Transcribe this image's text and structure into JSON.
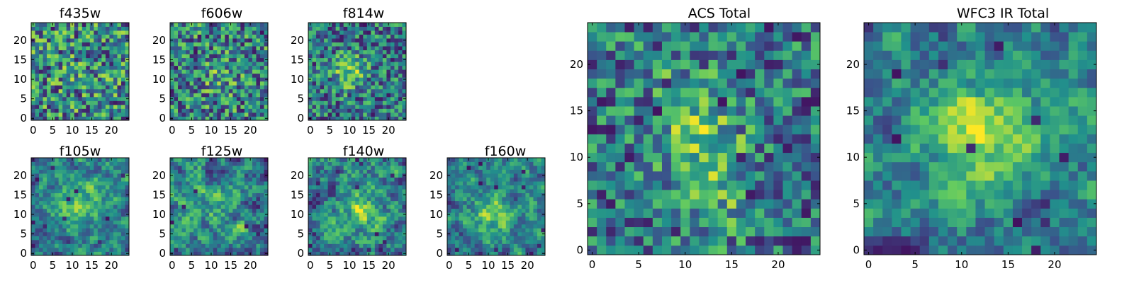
{
  "chart_data": [
    {
      "type": "heatmap",
      "title": "f435w",
      "x_ticks": [
        0,
        5,
        10,
        15,
        20
      ],
      "y_ticks": [
        0,
        5,
        10,
        15,
        20
      ],
      "xlim": [
        -0.5,
        24.5
      ],
      "ylim": [
        -0.5,
        24.5
      ],
      "grid_size": [
        25,
        25
      ],
      "colormap": "viridis",
      "pattern": "uniform noise, no visible source"
    },
    {
      "type": "heatmap",
      "title": "f606w",
      "x_ticks": [
        0,
        5,
        10,
        15,
        20
      ],
      "y_ticks": [
        0,
        5,
        10,
        15,
        20
      ],
      "xlim": [
        -0.5,
        24.5
      ],
      "ylim": [
        -0.5,
        24.5
      ],
      "grid_size": [
        25,
        25
      ],
      "colormap": "viridis",
      "pattern": "noise with faint central source"
    },
    {
      "type": "heatmap",
      "title": "f814w",
      "x_ticks": [
        0,
        5,
        10,
        15,
        20
      ],
      "y_ticks": [
        0,
        5,
        10,
        15,
        20
      ],
      "xlim": [
        -0.5,
        24.5
      ],
      "ylim": [
        -0.5,
        24.5
      ],
      "grid_size": [
        25,
        25
      ],
      "colormap": "viridis",
      "pattern": "noise with bright source near (10, 12)"
    },
    {
      "type": "heatmap",
      "title": "f105w",
      "x_ticks": [
        0,
        5,
        10,
        15,
        20
      ],
      "y_ticks": [
        0,
        5,
        10,
        15,
        20
      ],
      "xlim": [
        -0.5,
        24.5
      ],
      "ylim": [
        -0.5,
        24.5
      ],
      "grid_size": [
        25,
        25
      ],
      "colormap": "viridis",
      "pattern": "smooth noise with extended central source"
    },
    {
      "type": "heatmap",
      "title": "f125w",
      "x_ticks": [
        0,
        5,
        10,
        15,
        20
      ],
      "y_ticks": [
        0,
        5,
        10,
        15,
        20
      ],
      "xlim": [
        -0.5,
        24.5
      ],
      "ylim": [
        -0.5,
        24.5
      ],
      "grid_size": [
        25,
        25
      ],
      "colormap": "viridis",
      "pattern": "smooth noise"
    },
    {
      "type": "heatmap",
      "title": "f140w",
      "x_ticks": [
        0,
        5,
        10,
        15,
        20
      ],
      "y_ticks": [
        0,
        5,
        10,
        15,
        20
      ],
      "xlim": [
        -0.5,
        24.5
      ],
      "ylim": [
        -0.5,
        24.5
      ],
      "grid_size": [
        25,
        25
      ],
      "colormap": "viridis",
      "pattern": "smooth noise with central source"
    },
    {
      "type": "heatmap",
      "title": "f160w",
      "x_ticks": [
        0,
        5,
        10,
        15,
        20
      ],
      "y_ticks": [
        0,
        5,
        10,
        15,
        20
      ],
      "xlim": [
        -0.5,
        24.5
      ],
      "ylim": [
        -0.5,
        24.5
      ],
      "grid_size": [
        25,
        25
      ],
      "colormap": "viridis",
      "pattern": "smooth noise with source near (11, 10)"
    },
    {
      "type": "heatmap",
      "title": "ACS Total",
      "x_ticks": [
        0,
        5,
        10,
        15,
        20
      ],
      "y_ticks": [
        0,
        5,
        10,
        15,
        20
      ],
      "xlim": [
        -0.5,
        24.5
      ],
      "ylim": [
        -0.5,
        24.5
      ],
      "grid_size": [
        25,
        25
      ],
      "colormap": "viridis",
      "pattern": "elongated bright source along x 10-15, y 5-15"
    },
    {
      "type": "heatmap",
      "title": "WFC3 IR Total",
      "x_ticks": [
        0,
        5,
        10,
        15,
        20
      ],
      "y_ticks": [
        0,
        5,
        10,
        15,
        20
      ],
      "xlim": [
        -0.5,
        24.5
      ],
      "ylim": [
        -0.5,
        24.5
      ],
      "grid_size": [
        25,
        25
      ],
      "colormap": "viridis",
      "pattern": "extended bright source centred near (12, 13)"
    }
  ]
}
